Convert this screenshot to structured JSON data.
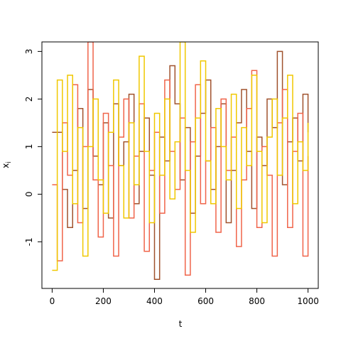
{
  "chart_data": {
    "type": "step",
    "xlabel": "t",
    "ylabel": "x",
    "ylabel_subscript": "i",
    "xlim": [
      -40,
      1040
    ],
    "ylim": [
      -1.98,
      3.2
    ],
    "xticks": [
      0,
      200,
      400,
      600,
      800,
      1000
    ],
    "yticks": [
      -1,
      0,
      1,
      2,
      3
    ],
    "x": [
      0,
      20,
      40,
      60,
      80,
      100,
      120,
      140,
      160,
      180,
      200,
      220,
      240,
      260,
      280,
      300,
      320,
      340,
      360,
      380,
      400,
      420,
      440,
      460,
      480,
      500,
      520,
      540,
      560,
      580,
      600,
      620,
      640,
      660,
      680,
      700,
      720,
      740,
      760,
      780,
      800,
      820,
      840,
      860,
      880,
      900,
      920,
      940,
      960,
      980,
      1000
    ],
    "series": [
      {
        "color": "#a0522d",
        "values": [
          1.3,
          1.3,
          0.1,
          -0.7,
          0.5,
          1.8,
          -0.3,
          2.2,
          0.8,
          0.2,
          1.5,
          -0.5,
          1.9,
          0.6,
          1.1,
          2.1,
          -0.2,
          0.9,
          1.6,
          0.4,
          -1.79,
          1.2,
          0.7,
          2.7,
          1.9,
          0.3,
          1.4,
          -0.4,
          0.8,
          1.7,
          2.4,
          0.1,
          1.0,
          1.9,
          -0.6,
          0.5,
          1.5,
          2.2,
          0.9,
          -0.3,
          1.2,
          0.6,
          2.0,
          1.4,
          3.0,
          0.2,
          1.1,
          1.6,
          0.7,
          2.1,
          1.3
        ]
      },
      {
        "color": "#f0644a",
        "values": [
          0.2,
          -1.4,
          1.5,
          0.4,
          2.3,
          -0.6,
          1.0,
          3.2,
          0.3,
          -0.9,
          1.7,
          0.6,
          -1.3,
          1.2,
          2.0,
          -0.5,
          0.8,
          1.9,
          -1.2,
          0.5,
          1.3,
          -0.4,
          2.4,
          0.9,
          0.1,
          1.6,
          -1.7,
          1.1,
          2.3,
          -0.2,
          0.7,
          1.4,
          -0.8,
          2.0,
          0.5,
          1.2,
          -1.1,
          0.3,
          1.8,
          2.6,
          -0.7,
          1.0,
          0.4,
          -1.3,
          1.5,
          2.2,
          -0.7,
          0.9,
          1.7,
          -1.3,
          0.8
        ]
      },
      {
        "color": "#f0c800",
        "values": [
          -1.6,
          2.4,
          0.9,
          2.5,
          -0.2,
          1.4,
          -1.3,
          1.0,
          2.0,
          0.3,
          -0.4,
          1.3,
          2.4,
          0.6,
          -0.5,
          1.5,
          0.2,
          2.9,
          0.9,
          -0.6,
          1.7,
          0.4,
          2.0,
          -0.1,
          1.1,
          3.2,
          0.5,
          -0.8,
          1.6,
          2.8,
          0.7,
          -0.2,
          1.8,
          1.0,
          0.3,
          2.1,
          -0.3,
          1.4,
          0.6,
          2.5,
          0.9,
          -0.6,
          1.2,
          2.0,
          0.4,
          1.6,
          2.5,
          -0.2,
          1.1,
          0.5,
          1.5
        ]
      }
    ]
  }
}
